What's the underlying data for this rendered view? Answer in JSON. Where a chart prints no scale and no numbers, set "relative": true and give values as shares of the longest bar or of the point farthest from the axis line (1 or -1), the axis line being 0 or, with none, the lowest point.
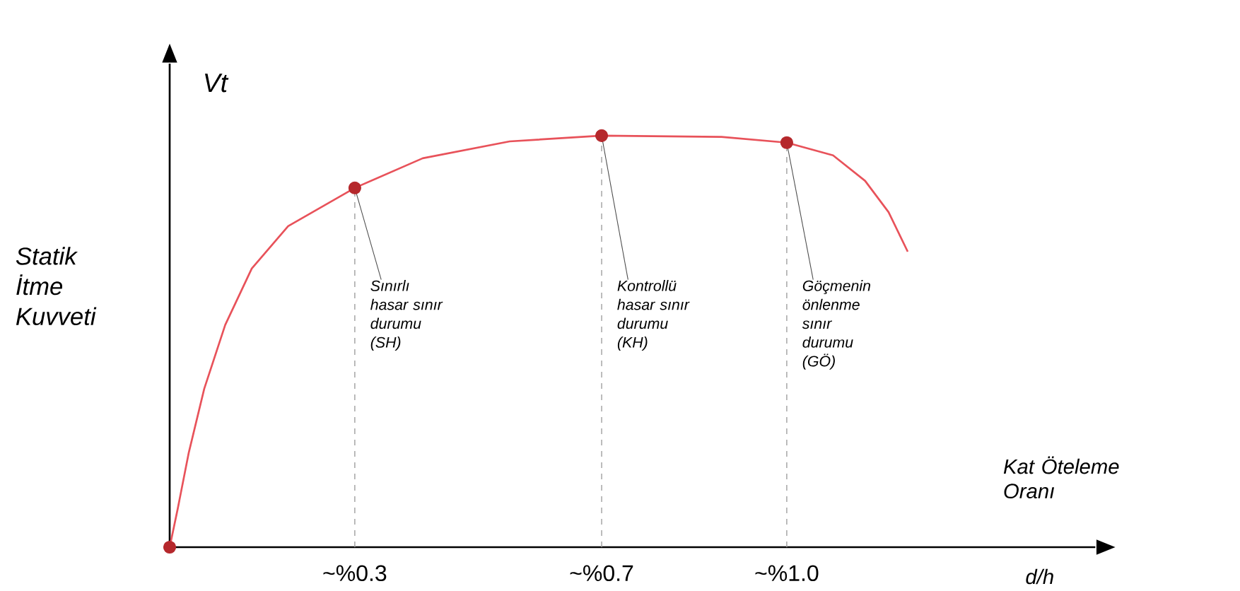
{
  "chart_data": {
    "type": "line",
    "relative": true,
    "xlabel": "d/h",
    "ylabel": "Vt",
    "xlim": [
      0,
      1.5
    ],
    "xticks": [
      {
        "value": 0.3,
        "label": "~%0.3"
      },
      {
        "value": 0.7,
        "label": "~%0.7"
      },
      {
        "value": 1.0,
        "label": "~%1.0"
      }
    ],
    "series": [
      {
        "type": "line",
        "color": "#e8525a",
        "x": [
          0,
          0.013,
          0.031,
          0.056,
          0.09,
          0.133,
          0.192,
          0.3,
          0.41,
          0.551,
          0.7,
          0.894,
          1.0,
          1.075,
          1.127,
          1.165,
          1.196
        ],
        "values": [
          0,
          0.093,
          0.23,
          0.385,
          0.54,
          0.677,
          0.78,
          0.873,
          0.945,
          0.986,
          1.0,
          0.997,
          0.983,
          0.952,
          0.89,
          0.814,
          0.718
        ]
      },
      {
        "type": "scatter",
        "color": "#b5282c",
        "marker": "circle",
        "x": [
          0,
          0.3,
          0.7,
          1.0
        ],
        "values": [
          0,
          0.873,
          1.0,
          0.983
        ]
      }
    ],
    "ref_lines": [
      {
        "axis": "x",
        "value": 0.3,
        "line_style": "dashed",
        "color": "#9a9a9a"
      },
      {
        "axis": "x",
        "value": 0.7,
        "line_style": "dashed",
        "color": "#9a9a9a"
      },
      {
        "axis": "x",
        "value": 1.0,
        "line_style": "dashed",
        "color": "#9a9a9a"
      }
    ],
    "annotations": [
      "Statik İtme Kuvveti",
      "Kat Öteleme Oranı",
      {
        "text": "Sınırlı hasar sınır durumu (SH)",
        "x": 0.3,
        "y": 0.873
      },
      {
        "text": "Kontrollü hasar sınır durumu (KH)",
        "x": 0.7,
        "y": 1.0
      },
      {
        "text": "Göçmenin önlenme sınır durumu (GÖ)",
        "x": 1.0,
        "y": 0.983
      }
    ]
  }
}
